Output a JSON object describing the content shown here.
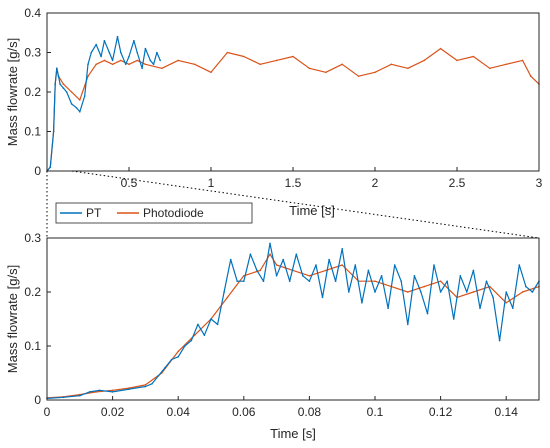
{
  "colors": {
    "pt": "#0072BD",
    "photodiode": "#D95319",
    "axis": "#262626",
    "zoom_line": "#000000"
  },
  "chart_data": [
    {
      "type": "line",
      "xlabel": "Time [s]",
      "ylabel": "Mass flowrate [g/s]",
      "xlim": [
        0,
        3
      ],
      "ylim": [
        0,
        0.4
      ],
      "xticks": [
        "0.5",
        "1",
        "1.5",
        "2",
        "2.5",
        "3"
      ],
      "xtick_values": [
        0.5,
        1,
        1.5,
        2,
        2.5,
        3
      ],
      "yticks": [
        "0",
        "0.1",
        "0.2",
        "0.3",
        "0.4"
      ],
      "ytick_values": [
        0,
        0.1,
        0.2,
        0.3,
        0.4
      ],
      "grid": false,
      "series": [
        {
          "name": "PT",
          "color": "#0072BD",
          "x": [
            0,
            0.02,
            0.04,
            0.05,
            0.06,
            0.07,
            0.08,
            0.1,
            0.12,
            0.15,
            0.18,
            0.2,
            0.23,
            0.25,
            0.27,
            0.3,
            0.33,
            0.35,
            0.38,
            0.4,
            0.43,
            0.45,
            0.48,
            0.5,
            0.53,
            0.55,
            0.58,
            0.6,
            0.63,
            0.65,
            0.67,
            0.69
          ],
          "y": [
            0,
            0.01,
            0.1,
            0.22,
            0.26,
            0.24,
            0.22,
            0.21,
            0.2,
            0.17,
            0.16,
            0.15,
            0.19,
            0.27,
            0.3,
            0.32,
            0.29,
            0.33,
            0.3,
            0.28,
            0.34,
            0.3,
            0.27,
            0.29,
            0.33,
            0.3,
            0.26,
            0.31,
            0.28,
            0.27,
            0.3,
            0.28
          ]
        },
        {
          "name": "Photodiode",
          "color": "#D95319",
          "x": [
            0,
            0.02,
            0.04,
            0.05,
            0.06,
            0.07,
            0.1,
            0.15,
            0.2,
            0.25,
            0.3,
            0.35,
            0.4,
            0.45,
            0.5,
            0.55,
            0.6,
            0.7,
            0.8,
            0.9,
            1.0,
            1.1,
            1.2,
            1.3,
            1.4,
            1.5,
            1.6,
            1.7,
            1.8,
            1.9,
            2.0,
            2.1,
            2.2,
            2.3,
            2.4,
            2.5,
            2.6,
            2.7,
            2.8,
            2.9,
            2.95,
            3.0
          ],
          "y": [
            0,
            0.01,
            0.1,
            0.22,
            0.26,
            0.24,
            0.22,
            0.2,
            0.18,
            0.24,
            0.27,
            0.28,
            0.27,
            0.28,
            0.27,
            0.28,
            0.27,
            0.26,
            0.28,
            0.27,
            0.25,
            0.3,
            0.29,
            0.27,
            0.28,
            0.29,
            0.26,
            0.25,
            0.27,
            0.24,
            0.25,
            0.27,
            0.26,
            0.28,
            0.31,
            0.28,
            0.29,
            0.26,
            0.27,
            0.28,
            0.24,
            0.22
          ]
        }
      ]
    },
    {
      "type": "line",
      "xlabel": "Time [s]",
      "ylabel": "Mass flowrate [g/s]",
      "xlim": [
        0,
        0.15
      ],
      "ylim": [
        0,
        0.3
      ],
      "xticks": [
        "0",
        "0.02",
        "0.04",
        "0.06",
        "0.08",
        "0.1",
        "0.12",
        "0.14"
      ],
      "xtick_values": [
        0,
        0.02,
        0.04,
        0.06,
        0.08,
        0.1,
        0.12,
        0.14
      ],
      "yticks": [
        "0",
        "0.1",
        "0.2",
        "0.3"
      ],
      "ytick_values": [
        0,
        0.1,
        0.2,
        0.3
      ],
      "grid": false,
      "legend": {
        "placement": "top-left",
        "entries": [
          "PT",
          "Photodiode"
        ]
      },
      "series": [
        {
          "name": "PT",
          "color": "#0072BD",
          "x": [
            0,
            0.005,
            0.01,
            0.013,
            0.016,
            0.02,
            0.025,
            0.03,
            0.032,
            0.034,
            0.036,
            0.038,
            0.04,
            0.042,
            0.044,
            0.046,
            0.048,
            0.05,
            0.052,
            0.054,
            0.056,
            0.058,
            0.06,
            0.062,
            0.064,
            0.066,
            0.068,
            0.07,
            0.072,
            0.074,
            0.076,
            0.078,
            0.08,
            0.082,
            0.084,
            0.086,
            0.088,
            0.09,
            0.092,
            0.094,
            0.096,
            0.098,
            0.1,
            0.102,
            0.104,
            0.106,
            0.108,
            0.11,
            0.112,
            0.114,
            0.116,
            0.118,
            0.12,
            0.122,
            0.124,
            0.126,
            0.128,
            0.13,
            0.132,
            0.134,
            0.136,
            0.138,
            0.14,
            0.142,
            0.144,
            0.146,
            0.148,
            0.15
          ],
          "y": [
            0.003,
            0.005,
            0.008,
            0.015,
            0.018,
            0.015,
            0.02,
            0.025,
            0.03,
            0.045,
            0.06,
            0.075,
            0.08,
            0.1,
            0.11,
            0.14,
            0.12,
            0.15,
            0.14,
            0.2,
            0.26,
            0.22,
            0.22,
            0.27,
            0.24,
            0.22,
            0.29,
            0.23,
            0.26,
            0.22,
            0.27,
            0.23,
            0.22,
            0.25,
            0.19,
            0.26,
            0.22,
            0.28,
            0.2,
            0.25,
            0.18,
            0.24,
            0.2,
            0.23,
            0.17,
            0.25,
            0.22,
            0.14,
            0.23,
            0.2,
            0.16,
            0.25,
            0.2,
            0.22,
            0.15,
            0.23,
            0.2,
            0.24,
            0.17,
            0.22,
            0.19,
            0.11,
            0.2,
            0.17,
            0.25,
            0.21,
            0.2,
            0.22
          ]
        },
        {
          "name": "Photodiode",
          "color": "#D95319",
          "x": [
            0,
            0.005,
            0.01,
            0.015,
            0.02,
            0.025,
            0.03,
            0.035,
            0.04,
            0.045,
            0.05,
            0.055,
            0.06,
            0.065,
            0.068,
            0.07,
            0.075,
            0.08,
            0.085,
            0.09,
            0.095,
            0.1,
            0.105,
            0.11,
            0.115,
            0.12,
            0.125,
            0.13,
            0.135,
            0.14,
            0.145,
            0.15
          ],
          "y": [
            0.004,
            0.006,
            0.01,
            0.015,
            0.018,
            0.022,
            0.028,
            0.05,
            0.09,
            0.12,
            0.15,
            0.19,
            0.23,
            0.24,
            0.27,
            0.25,
            0.24,
            0.23,
            0.24,
            0.25,
            0.22,
            0.22,
            0.21,
            0.2,
            0.21,
            0.22,
            0.19,
            0.2,
            0.21,
            0.18,
            0.2,
            0.21
          ]
        }
      ]
    }
  ]
}
